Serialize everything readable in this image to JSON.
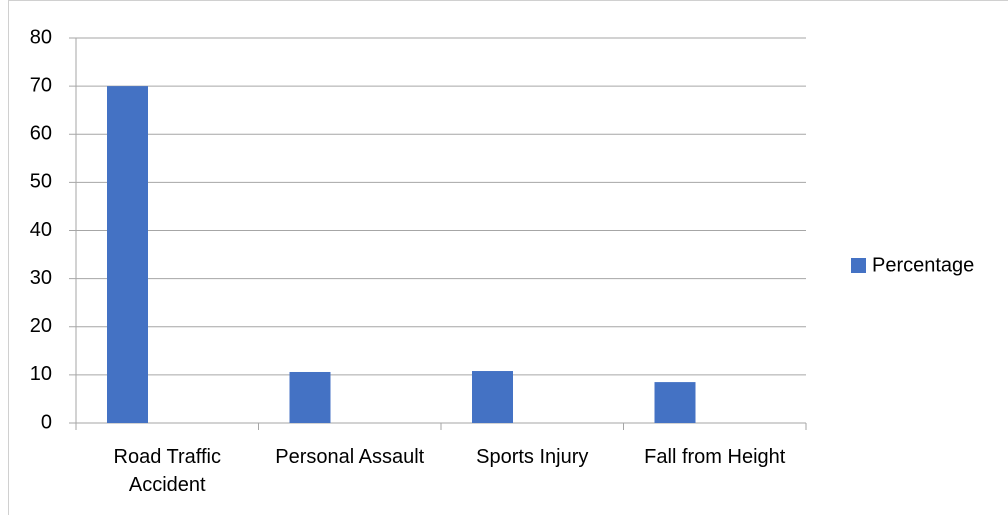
{
  "chart_data": {
    "type": "bar",
    "categories": [
      "Road Traffic Accident",
      "Personal Assault",
      "Sports Injury",
      "Fall from Height"
    ],
    "series": [
      {
        "name": "Percentage",
        "color": "#4472c4",
        "values": [
          70,
          10.6,
          10.8,
          8.5
        ]
      }
    ],
    "ylim": [
      0,
      80
    ],
    "yticks": [
      0,
      10,
      20,
      30,
      40,
      50,
      60,
      70,
      80
    ],
    "grid": true,
    "legend": "right"
  }
}
